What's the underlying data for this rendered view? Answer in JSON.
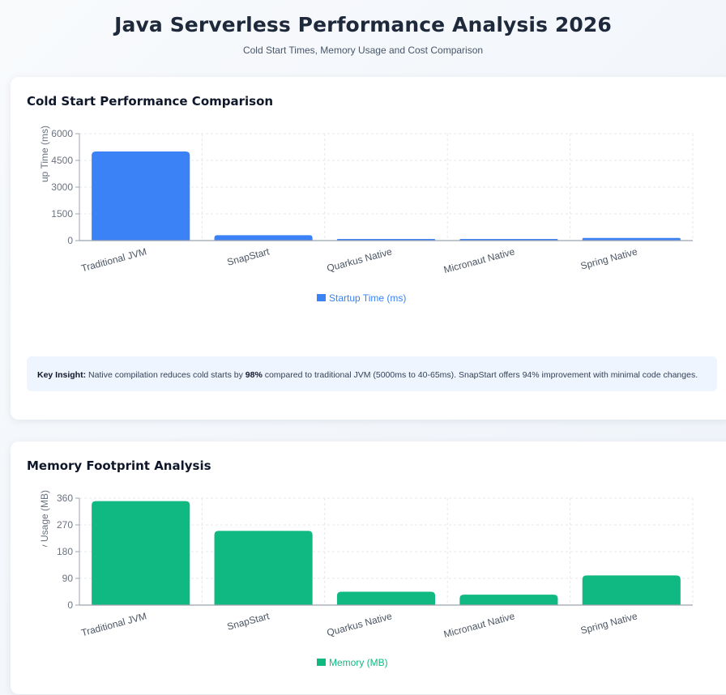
{
  "header": {
    "title": "Java Serverless Performance Analysis 2026",
    "subtitle": "Cold Start Times, Memory Usage and Cost Comparison"
  },
  "cards": {
    "cold_start": {
      "title": "Cold Start Performance Comparison"
    },
    "memory": {
      "title": "Memory Footprint Analysis"
    }
  },
  "insight": {
    "label": "Key Insight:",
    "text_1": "Native compilation reduces cold starts by",
    "highlight": "98%",
    "text_2": "compared to traditional JVM (5000ms to 40-65ms). SnapStart offers 94% improvement with minimal code changes."
  },
  "chart_data": [
    {
      "type": "bar",
      "categories": [
        "Traditional JVM",
        "SnapStart",
        "Quarkus Native",
        "Micronaut Native",
        "Spring Native"
      ],
      "series": [
        {
          "name": "Startup Time (ms)",
          "values": [
            5000,
            300,
            65,
            40,
            150
          ],
          "color": "#3b82f6"
        }
      ],
      "ylabel": "Startup Time (ms)",
      "ylabel_visible": "Startup Time (r",
      "ylim": [
        0,
        6000
      ],
      "yticks": [
        0,
        1500,
        3000,
        4500,
        6000
      ],
      "grid": true,
      "legend": "bottom-center"
    },
    {
      "type": "bar",
      "categories": [
        "Traditional JVM",
        "SnapStart",
        "Quarkus Native",
        "Micronaut Native",
        "Spring Native"
      ],
      "series": [
        {
          "name": "Memory (MB)",
          "values": [
            350,
            250,
            45,
            35,
            100
          ],
          "color": "#10b981"
        }
      ],
      "ylabel": "Memory Usage (MB)",
      "ylabel_visible": "Memory Us",
      "ylim": [
        0,
        360
      ],
      "yticks": [
        0,
        90,
        180,
        270,
        360
      ],
      "grid": true,
      "legend": "bottom-center"
    }
  ]
}
